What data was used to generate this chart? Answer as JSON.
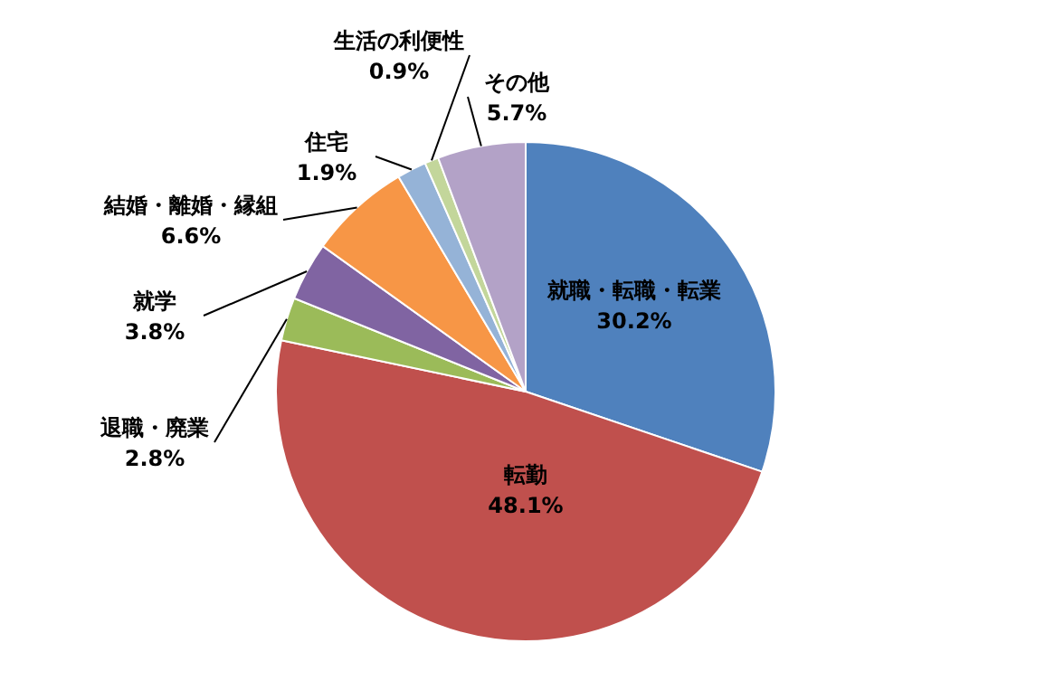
{
  "chart_data": {
    "type": "pie",
    "categories": [
      "就職・転職・転業",
      "転勤",
      "退職・廃業",
      "就学",
      "結婚・離婚・縁組",
      "住宅",
      "生活の利便性",
      "その他"
    ],
    "values": [
      30.2,
      48.1,
      2.8,
      3.8,
      6.6,
      1.9,
      0.9,
      5.7
    ],
    "colors": [
      "#4f81bd",
      "#c0504d",
      "#9bbb59",
      "#8064a2",
      "#f79646",
      "#95b3d7",
      "#c3d69b",
      "#b3a2c7"
    ],
    "value_labels": [
      "30.2%",
      "48.1%",
      "2.8%",
      "3.8%",
      "6.6%",
      "1.9%",
      "0.9%",
      "5.7%"
    ]
  }
}
